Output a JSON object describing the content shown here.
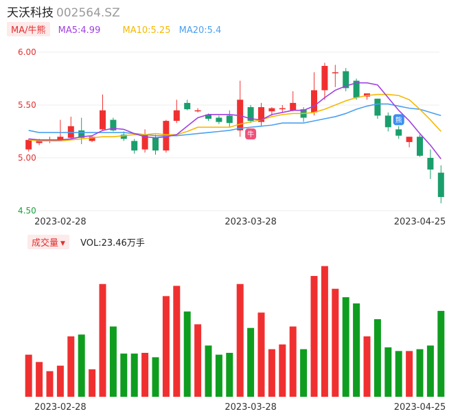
{
  "header": {
    "name": "天沃科技",
    "code": "002564.SZ"
  },
  "ma_bar": {
    "tag": "MA/牛熊",
    "ma5": "MA5:4.99",
    "ma10": "MA10:5.25",
    "ma20": "MA20:5.4"
  },
  "volume_bar": {
    "tag": "成交量",
    "value": "VOL:23.46万手"
  },
  "colors": {
    "up": "#f03030",
    "down": "#1a9e6c",
    "vol_down": "#0f9d20",
    "ma5": "#a040e0",
    "ma10": "#f5b800",
    "ma20": "#4aa0f0"
  },
  "chart_data": [
    {
      "type": "candlestick",
      "title": "",
      "y_ticks": [
        "6.00",
        "5.50",
        "5.00",
        "4.50"
      ],
      "ylim": [
        4.5,
        6.0
      ],
      "x_tick_labels": [
        "2023-02-28",
        "2023-03-28",
        "2023-04-25"
      ],
      "x_tick_index": [
        3,
        21,
        37
      ],
      "markers": [
        {
          "label": "牛",
          "index": 21
        },
        {
          "label": "熊",
          "index": 35
        }
      ],
      "candles": [
        {
          "o": 5.08,
          "h": 5.18,
          "l": 5.06,
          "c": 5.17
        },
        {
          "o": 5.14,
          "h": 5.18,
          "l": 5.12,
          "c": 5.17
        },
        {
          "o": 5.16,
          "h": 5.2,
          "l": 5.14,
          "c": 5.17
        },
        {
          "o": 5.17,
          "h": 5.36,
          "l": 5.16,
          "c": 5.2
        },
        {
          "o": 5.19,
          "h": 5.39,
          "l": 5.18,
          "c": 5.3
        },
        {
          "o": 5.26,
          "h": 5.38,
          "l": 5.13,
          "c": 5.19
        },
        {
          "o": 5.16,
          "h": 5.2,
          "l": 5.15,
          "c": 5.2
        },
        {
          "o": 5.27,
          "h": 5.6,
          "l": 5.26,
          "c": 5.45
        },
        {
          "o": 5.36,
          "h": 5.38,
          "l": 5.25,
          "c": 5.26
        },
        {
          "o": 5.22,
          "h": 5.25,
          "l": 5.16,
          "c": 5.18
        },
        {
          "o": 5.16,
          "h": 5.18,
          "l": 5.04,
          "c": 5.07
        },
        {
          "o": 5.08,
          "h": 5.27,
          "l": 5.05,
          "c": 5.22
        },
        {
          "o": 5.19,
          "h": 5.22,
          "l": 5.03,
          "c": 5.07
        },
        {
          "o": 5.07,
          "h": 5.36,
          "l": 5.05,
          "c": 5.35
        },
        {
          "o": 5.35,
          "h": 5.55,
          "l": 5.33,
          "c": 5.45
        },
        {
          "o": 5.52,
          "h": 5.55,
          "l": 5.45,
          "c": 5.46
        },
        {
          "o": 5.44,
          "h": 5.47,
          "l": 5.43,
          "c": 5.45
        },
        {
          "o": 5.41,
          "h": 5.42,
          "l": 5.35,
          "c": 5.37
        },
        {
          "o": 5.38,
          "h": 5.4,
          "l": 5.32,
          "c": 5.34
        },
        {
          "o": 5.4,
          "h": 5.45,
          "l": 5.29,
          "c": 5.33
        },
        {
          "o": 5.26,
          "h": 5.73,
          "l": 5.2,
          "c": 5.55
        },
        {
          "o": 5.48,
          "h": 5.5,
          "l": 5.33,
          "c": 5.35
        },
        {
          "o": 5.34,
          "h": 5.52,
          "l": 5.3,
          "c": 5.48
        },
        {
          "o": 5.44,
          "h": 5.48,
          "l": 5.4,
          "c": 5.47
        },
        {
          "o": 5.46,
          "h": 5.5,
          "l": 5.43,
          "c": 5.47
        },
        {
          "o": 5.45,
          "h": 5.63,
          "l": 5.44,
          "c": 5.52
        },
        {
          "o": 5.46,
          "h": 5.48,
          "l": 5.34,
          "c": 5.38
        },
        {
          "o": 5.43,
          "h": 5.81,
          "l": 5.4,
          "c": 5.64
        },
        {
          "o": 5.64,
          "h": 5.9,
          "l": 5.55,
          "c": 5.87
        },
        {
          "o": 5.8,
          "h": 5.88,
          "l": 5.67,
          "c": 5.81
        },
        {
          "o": 5.82,
          "h": 5.85,
          "l": 5.63,
          "c": 5.66
        },
        {
          "o": 5.73,
          "h": 5.75,
          "l": 5.55,
          "c": 5.57
        },
        {
          "o": 5.58,
          "h": 5.6,
          "l": 5.55,
          "c": 5.61
        },
        {
          "o": 5.56,
          "h": 5.56,
          "l": 5.37,
          "c": 5.4
        },
        {
          "o": 5.4,
          "h": 5.43,
          "l": 5.25,
          "c": 5.29
        },
        {
          "o": 5.27,
          "h": 5.3,
          "l": 5.18,
          "c": 5.21
        },
        {
          "o": 5.15,
          "h": 5.2,
          "l": 5.1,
          "c": 5.2
        },
        {
          "o": 5.2,
          "h": 5.22,
          "l": 5.01,
          "c": 5.02
        },
        {
          "o": 5.0,
          "h": 5.08,
          "l": 4.8,
          "c": 4.89
        },
        {
          "o": 4.86,
          "h": 4.93,
          "l": 4.57,
          "c": 4.63
        }
      ],
      "ma5": [
        5.18,
        5.17,
        5.17,
        5.17,
        5.18,
        5.2,
        5.21,
        5.26,
        5.28,
        5.27,
        5.23,
        5.2,
        5.19,
        5.2,
        5.22,
        5.3,
        5.38,
        5.41,
        5.41,
        5.41,
        5.4,
        5.37,
        5.36,
        5.41,
        5.43,
        5.45,
        5.45,
        5.49,
        5.57,
        5.64,
        5.68,
        5.71,
        5.71,
        5.69,
        5.57,
        5.45,
        5.35,
        5.23,
        5.12,
        4.99
      ],
      "ma10": [
        5.17,
        5.16,
        5.16,
        5.16,
        5.17,
        5.18,
        5.19,
        5.2,
        5.2,
        5.21,
        5.22,
        5.22,
        5.23,
        5.22,
        5.22,
        5.25,
        5.29,
        5.29,
        5.29,
        5.29,
        5.32,
        5.34,
        5.36,
        5.39,
        5.41,
        5.42,
        5.42,
        5.43,
        5.46,
        5.5,
        5.54,
        5.57,
        5.59,
        5.6,
        5.6,
        5.59,
        5.55,
        5.46,
        5.36,
        5.25
      ],
      "ma20": [
        5.26,
        5.24,
        5.24,
        5.24,
        5.24,
        5.24,
        5.24,
        5.24,
        5.24,
        5.24,
        5.23,
        5.22,
        5.21,
        5.21,
        5.21,
        5.22,
        5.23,
        5.24,
        5.25,
        5.26,
        5.28,
        5.29,
        5.3,
        5.31,
        5.33,
        5.33,
        5.33,
        5.35,
        5.37,
        5.39,
        5.42,
        5.46,
        5.49,
        5.51,
        5.51,
        5.49,
        5.47,
        5.46,
        5.43,
        5.4
      ]
    },
    {
      "type": "bar",
      "title": "",
      "ylabel": "VOL",
      "unit": "万手",
      "volumes": [
        11.5,
        9.5,
        7.0,
        8.5,
        16.5,
        17.0,
        7.5,
        30.8,
        19.2,
        11.8,
        11.8,
        12.0,
        10.8,
        27.5,
        30.3,
        23.3,
        19.8,
        14.0,
        11.5,
        12.0,
        30.8,
        18.8,
        23.0,
        13.0,
        14.3,
        19.2,
        13.0,
        33.0,
        35.7,
        29.5,
        27.2,
        25.5,
        16.5,
        21.2,
        13.5,
        12.5,
        12.5,
        13.0,
        14.0,
        23.46
      ]
    }
  ]
}
